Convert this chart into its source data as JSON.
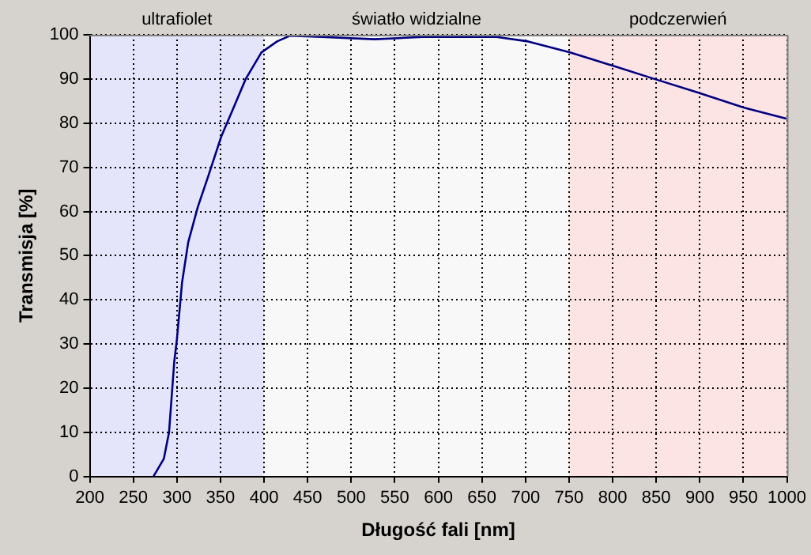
{
  "chart_data": {
    "type": "line",
    "xlabel": "Długość fali [nm]",
    "ylabel": "Transmisja [%]",
    "x": [
      273,
      285,
      291,
      297,
      300,
      306,
      313,
      324,
      336,
      351,
      364,
      379,
      397,
      415,
      430,
      466,
      527,
      582,
      667,
      703,
      751,
      800,
      848,
      897,
      951,
      1000
    ],
    "series": [
      {
        "color": "#000080",
        "values": [
          0,
          4,
          10,
          26,
          31,
          44,
          53,
          61,
          68,
          77,
          83,
          90,
          96,
          98.5,
          99.8,
          99.5,
          99,
          99.5,
          99.5,
          98.5,
          96,
          93,
          90,
          87,
          83.5,
          81
        ]
      }
    ],
    "xlim": [
      200,
      1000
    ],
    "xticks": [
      200,
      250,
      300,
      350,
      400,
      450,
      500,
      550,
      600,
      650,
      700,
      750,
      800,
      850,
      900,
      950,
      1000
    ],
    "ylim": [
      0,
      100
    ],
    "yticks": [
      0,
      10,
      20,
      30,
      40,
      50,
      60,
      70,
      80,
      90,
      100
    ],
    "bands": [
      {
        "axis": "x",
        "from": 200,
        "to": 400,
        "label": "ultrafiolet",
        "color": "#e4e4fb"
      },
      {
        "axis": "x",
        "from": 400,
        "to": 750,
        "label": "światło widzialne",
        "color": "#f8f8f8"
      },
      {
        "axis": "x",
        "from": 750,
        "to": 1000,
        "label": "podczerwień",
        "color": "#fde4e4"
      }
    ],
    "grid": true,
    "legend": false,
    "marker": "none",
    "line_style": "solid"
  }
}
